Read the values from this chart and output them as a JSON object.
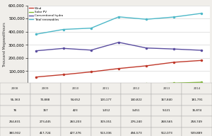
{
  "years": [
    2008,
    2009,
    2010,
    2011,
    2012,
    2013,
    2014
  ],
  "wind": [
    55363,
    73888,
    94652,
    120177,
    140822,
    167840,
    181791
  ],
  "solar_pv": [
    76,
    157,
    423,
    1012,
    3451,
    9121,
    15874
  ],
  "conv_hydro": [
    254831,
    273445,
    260203,
    319351,
    276240,
    268565,
    258749
  ],
  "total_renewables": [
    380932,
    417724,
    427376,
    513336,
    494573,
    512073,
    539889
  ],
  "wind_color": "#c0392b",
  "solar_pv_color": "#7fb832",
  "conv_hydro_color": "#5b4ea0",
  "total_renewables_color": "#4db8c8",
  "bg_color": "#f0eeea",
  "plot_bg": "#ffffff",
  "ylabel": "Thousand Megawatthours",
  "ylim": [
    0,
    600000
  ],
  "yticks": [
    0,
    100000,
    200000,
    300000,
    400000,
    500000,
    600000
  ],
  "legend_labels": [
    "Wind",
    "Solar PV",
    "Conventional hydro",
    "Total renewables"
  ],
  "table_rows": [
    [
      "Wind",
      "55,363",
      "73,888",
      "94,652",
      "120,177",
      "140,822",
      "167,840",
      "181,791"
    ],
    [
      "Solar PV",
      "76",
      "157",
      "423",
      "1,012",
      "3,451",
      "9,121",
      "15,874"
    ],
    [
      "Conventional hydro",
      "254,831",
      "273,445",
      "260,203",
      "319,351",
      "276,240",
      "268,565",
      "258,749"
    ],
    [
      "Total renewables",
      "380,932",
      "417,724",
      "427,376",
      "513,336",
      "494,573",
      "512,073",
      "539,889"
    ]
  ]
}
